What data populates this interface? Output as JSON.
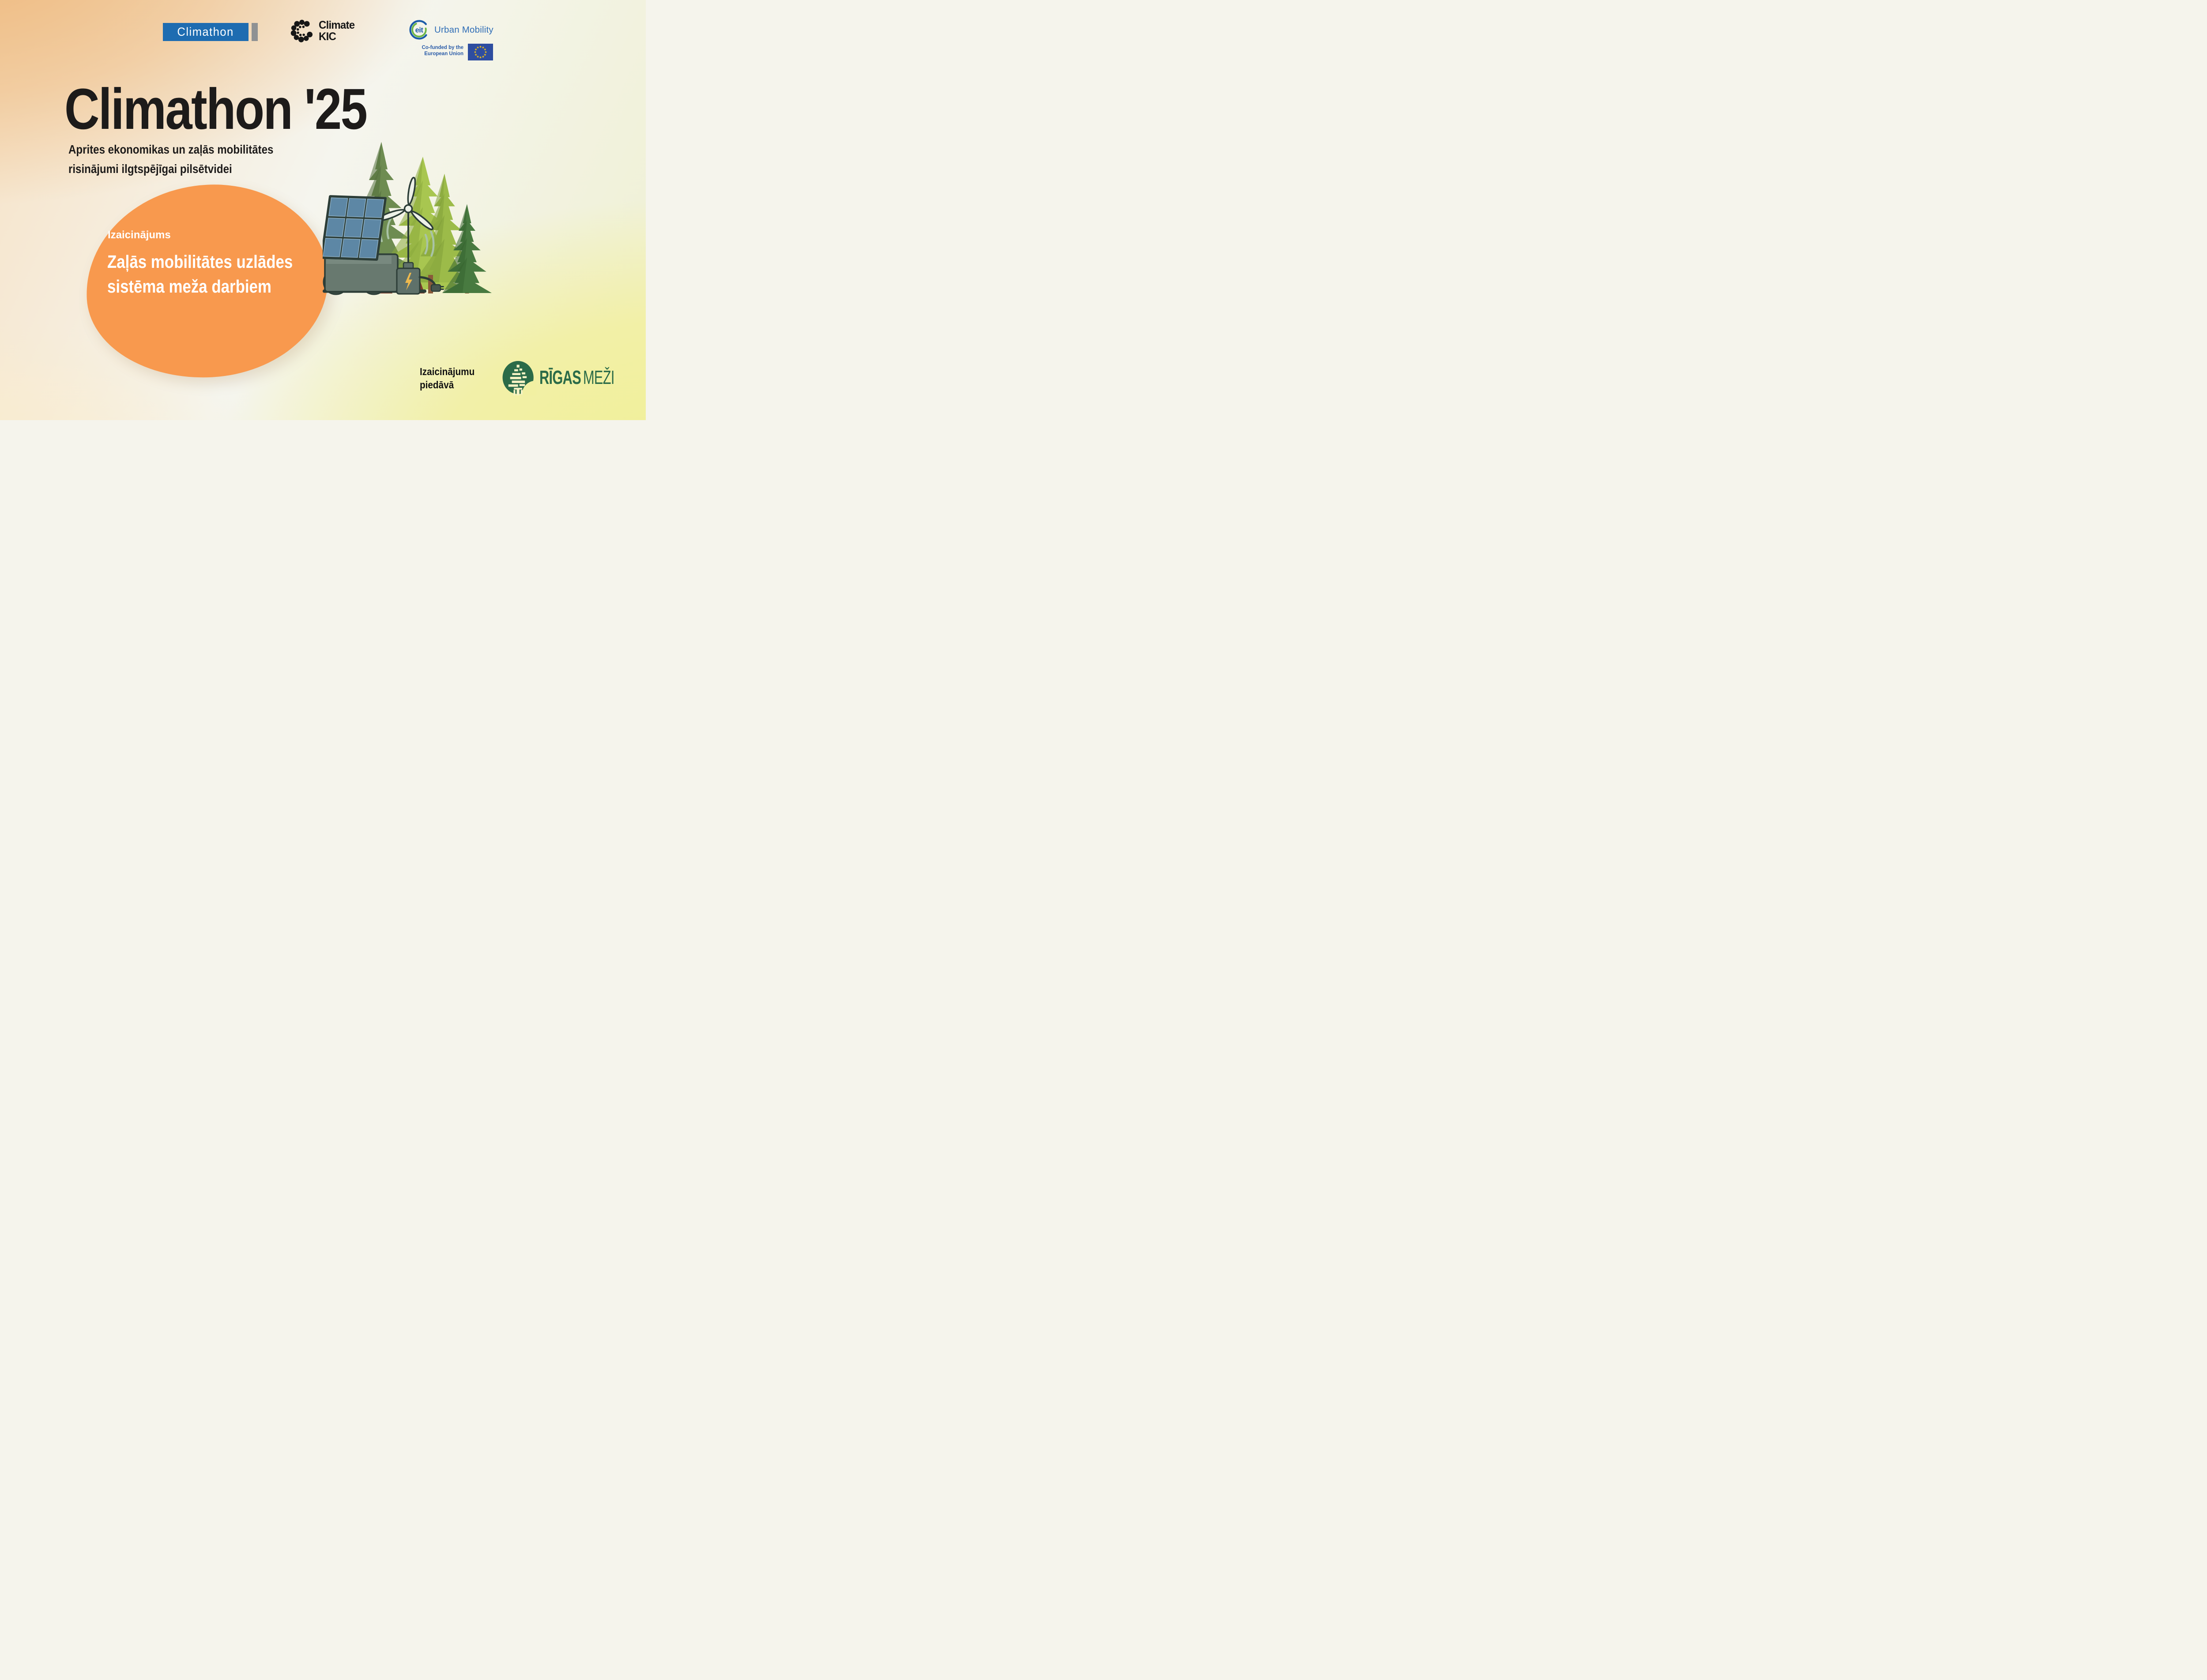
{
  "brand_bar": {
    "climathon": {
      "label": "Climathon"
    },
    "climate_kic": {
      "line1": "Climate",
      "line2": "KIC"
    },
    "eit": {
      "acronym": "eit",
      "program": "Urban Mobility"
    },
    "eu": {
      "cofunded_line1": "Co-funded by the",
      "cofunded_line2": "European Union"
    }
  },
  "hero": {
    "title": "Climathon '25",
    "subtitle_line1": "Aprites ekonomikas un zaļās mobilitātes",
    "subtitle_line2": "risinājumi ilgtspējīgai pilsētvidei"
  },
  "challenge": {
    "label": "Izaicinājums",
    "name_line1": "Zaļās mobilitātes uzlādes",
    "name_line2": "sistēma meža darbiem"
  },
  "footer": {
    "offered_by_line1": "Izaicinājumu",
    "offered_by_line2": "piedāvā",
    "rigas_mezi_part1": "RĪGAS",
    "rigas_mezi_part2": "MEŽI"
  },
  "colors": {
    "climathon_blue": "#1E6CB1",
    "logo_gray": "#8F9193",
    "kic_black": "#161616",
    "eit_blue": "#1C5CA8",
    "eit_green": "#6CB645",
    "eu_flag_blue": "#2E4DA0",
    "eu_star_yellow": "#F7C411",
    "title_black": "#1D1B1A",
    "challenge_orange": "#F8994E",
    "challenge_text_white": "#FFFFFF",
    "rigas_mezi_green": "#2B6B48",
    "bg_peach_top_left": "#EFBC82",
    "bg_yellow_bottom_right": "#F3F1A1"
  },
  "icons": {
    "climate_kic_mark": "dotted-c-circle",
    "eit_mark": "blue-green-arc-ring",
    "eu_flag": "twelve-star-circle",
    "rigas_mezi_mark": "green-egg-bar-tree",
    "illustration": "solar-cart-wind-turbine-battery-forest"
  }
}
